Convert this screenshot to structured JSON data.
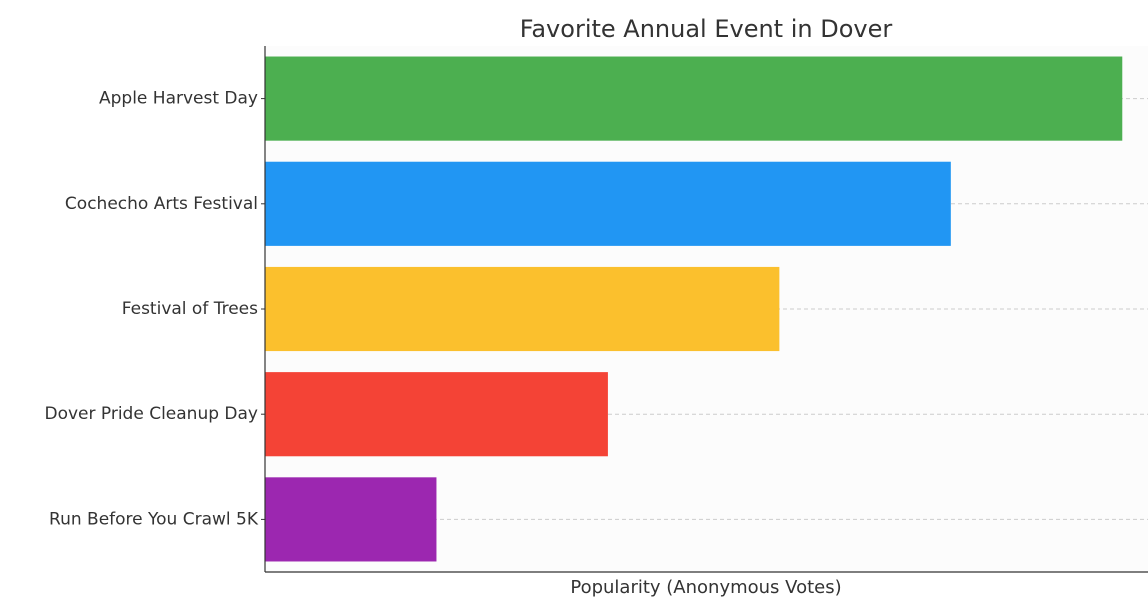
{
  "chart_data": {
    "type": "bar",
    "orientation": "horizontal",
    "title": "Favorite Annual Event in Dover",
    "xlabel": "Popularity (Anonymous Votes)",
    "ylabel": "",
    "categories": [
      "Apple Harvest Day",
      "Cochecho Arts Festival",
      "Festival of Trees",
      "Dover Pride Cleanup Day",
      "Run Before You Crawl 5K"
    ],
    "values": [
      5,
      4,
      3,
      2,
      1
    ],
    "colors": [
      "#4caf50",
      "#2196f3",
      "#fbc02d",
      "#f44336",
      "#9c27b0"
    ],
    "xlim": [
      0,
      5.15
    ],
    "x_ticks_visible": false,
    "grid": "horizontal dashed",
    "legend": "none"
  }
}
